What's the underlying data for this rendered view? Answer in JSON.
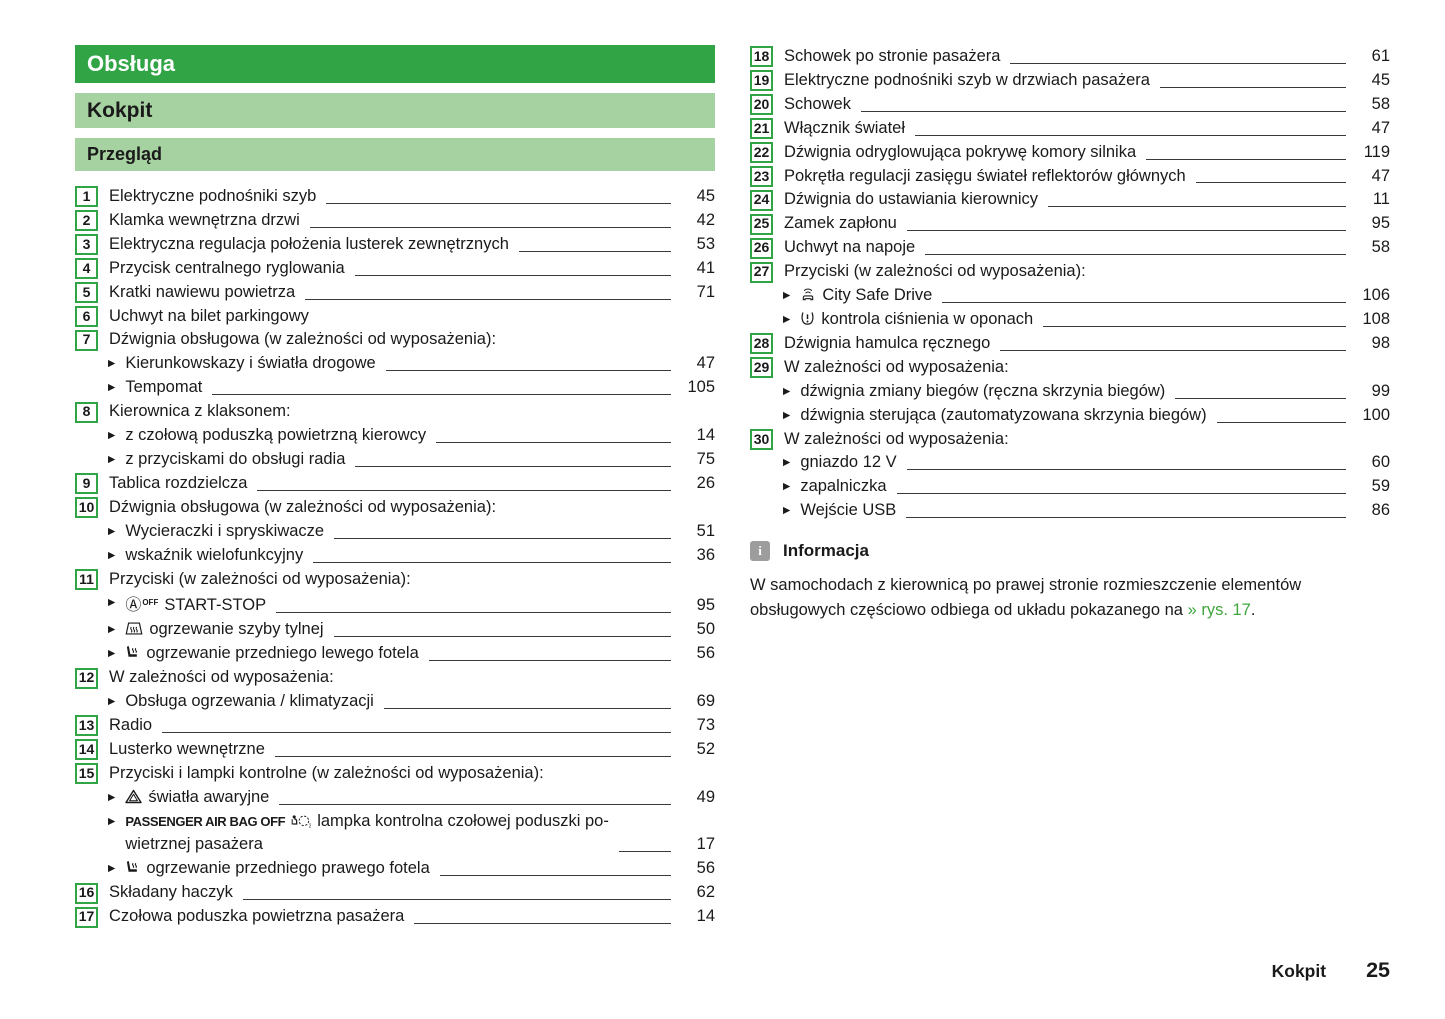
{
  "headers": {
    "chapter": "Obsługa",
    "section": "Kokpit",
    "subsection": "Przegląd"
  },
  "colors": {
    "brand_green": "#31a546",
    "light_green": "#a6d1a0",
    "link_green": "#3fa53c",
    "info_gray": "#9d9d9d"
  },
  "toc": {
    "left": [
      {
        "num": "1",
        "text": "Elektryczne podnośniki szyb",
        "page": "45"
      },
      {
        "num": "2",
        "text": "Klamka wewnętrzna drzwi",
        "page": "42"
      },
      {
        "num": "3",
        "text": "Elektryczna regulacja położenia lusterek zewnętrznych",
        "page": "53"
      },
      {
        "num": "4",
        "text": "Przycisk centralnego ryglowania",
        "page": "41"
      },
      {
        "num": "5",
        "text": "Kratki nawiewu powietrza",
        "page": "71"
      },
      {
        "num": "6",
        "text": "Uchwyt na bilet parkingowy",
        "page": ""
      },
      {
        "num": "7",
        "text": "Dźwignia obsługowa (w zależności od wyposażenia):",
        "page": "",
        "subs": [
          {
            "text": "Kierunkowskazy i światła drogowe",
            "page": "47"
          },
          {
            "text": "Tempomat",
            "page": "105"
          }
        ]
      },
      {
        "num": "8",
        "text": "Kierownica z klaksonem:",
        "page": "",
        "subs": [
          {
            "text": "z czołową poduszką powietrzną kierowcy",
            "page": "14"
          },
          {
            "text": "z przyciskami do obsługi radia",
            "page": "75"
          }
        ]
      },
      {
        "num": "9",
        "text": "Tablica rozdzielcza",
        "page": "26"
      },
      {
        "num": "10",
        "text": "Dźwignia obsługowa (w zależności od wyposażenia):",
        "page": "",
        "subs": [
          {
            "text": "Wycieraczki i spryskiwacze",
            "page": "51"
          },
          {
            "text": "wskaźnik wielofunkcyjny",
            "page": "36"
          }
        ]
      },
      {
        "num": "11",
        "text": "Przyciski (w zależności od wyposażenia):",
        "page": "",
        "subs": [
          {
            "icon": "start-stop-icon",
            "text": "START-STOP",
            "page": "95"
          },
          {
            "icon": "rear-window-heating-icon",
            "text": "ogrzewanie szyby tylnej",
            "page": "50"
          },
          {
            "icon": "seat-heating-left-icon",
            "text": "ogrzewanie przedniego lewego fotela",
            "page": "56"
          }
        ]
      },
      {
        "num": "12",
        "text": "W zależności od wyposażenia:",
        "page": "",
        "subs": [
          {
            "text": "Obsługa ogrzewania / klimatyzacji",
            "page": "69"
          }
        ]
      },
      {
        "num": "13",
        "text": "Radio",
        "page": "73"
      },
      {
        "num": "14",
        "text": "Lusterko wewnętrzne",
        "page": "52"
      },
      {
        "num": "15",
        "text": "Przyciski i lampki kontrolne (w zależności od wyposażenia):",
        "page": "",
        "subs": [
          {
            "icon": "hazard-lights-icon",
            "text": "światła awaryjne",
            "page": "49"
          },
          {
            "prefix": "PASSENGER AIR BAG OFF",
            "icon": "passenger-airbag-icon",
            "text": "lampka kontrolna czołowej poduszki po-",
            "text2": "wietrznej pasażera",
            "page": "17"
          },
          {
            "icon": "seat-heating-right-icon",
            "text": "ogrzewanie przedniego prawego fotela",
            "page": "56"
          }
        ]
      },
      {
        "num": "16",
        "text": "Składany haczyk",
        "page": "62"
      },
      {
        "num": "17",
        "text": "Czołowa poduszka powietrzna pasażera",
        "page": "14"
      }
    ],
    "right": [
      {
        "num": "18",
        "text": "Schowek po stronie pasażera",
        "page": "61"
      },
      {
        "num": "19",
        "text": "Elektryczne podnośniki szyb w drzwiach pasażera",
        "page": "45"
      },
      {
        "num": "20",
        "text": "Schowek",
        "page": "58"
      },
      {
        "num": "21",
        "text": "Włącznik świateł",
        "page": "47"
      },
      {
        "num": "22",
        "text": "Dźwignia odryglowująca pokrywę komory silnika",
        "page": "119"
      },
      {
        "num": "23",
        "text": "Pokrętła regulacji zasięgu świateł reflektorów głównych",
        "page": "47"
      },
      {
        "num": "24",
        "text": "Dźwignia do ustawiania kierownicy",
        "page": "11"
      },
      {
        "num": "25",
        "text": "Zamek zapłonu",
        "page": "95"
      },
      {
        "num": "26",
        "text": "Uchwyt na napoje",
        "page": "58"
      },
      {
        "num": "27",
        "text": "Przyciski (w zależności od wyposażenia):",
        "page": "",
        "subs": [
          {
            "icon": "city-safe-drive-icon",
            "text": "City Safe Drive",
            "page": "106"
          },
          {
            "icon": "tire-pressure-icon",
            "text": "kontrola ciśnienia w oponach",
            "page": "108"
          }
        ]
      },
      {
        "num": "28",
        "text": "Dźwignia hamulca ręcznego",
        "page": "98"
      },
      {
        "num": "29",
        "text": "W zależności od wyposażenia:",
        "page": "",
        "subs": [
          {
            "text": "dźwignia zmiany biegów (ręczna skrzynia biegów)",
            "page": "99"
          },
          {
            "text": "dźwignia sterująca (zautomatyzowana skrzynia biegów)",
            "page": "100"
          }
        ]
      },
      {
        "num": "30",
        "text": "W zależności od wyposażenia:",
        "page": "",
        "subs": [
          {
            "text": "gniazdo 12 V",
            "page": "60"
          },
          {
            "text": "zapalniczka",
            "page": "59"
          },
          {
            "text": "Wejście USB",
            "page": "86"
          }
        ]
      }
    ]
  },
  "info": {
    "icon_glyph": "i",
    "title": "Informacja",
    "body": "W samochodach z kierownicą po prawej stronie rozmieszczenie elementów obsługowych częściowo odbiega od układu pokazanego na ",
    "link": "» rys. 17",
    "after": "."
  },
  "footer": {
    "section": "Kokpit",
    "page": "25"
  }
}
